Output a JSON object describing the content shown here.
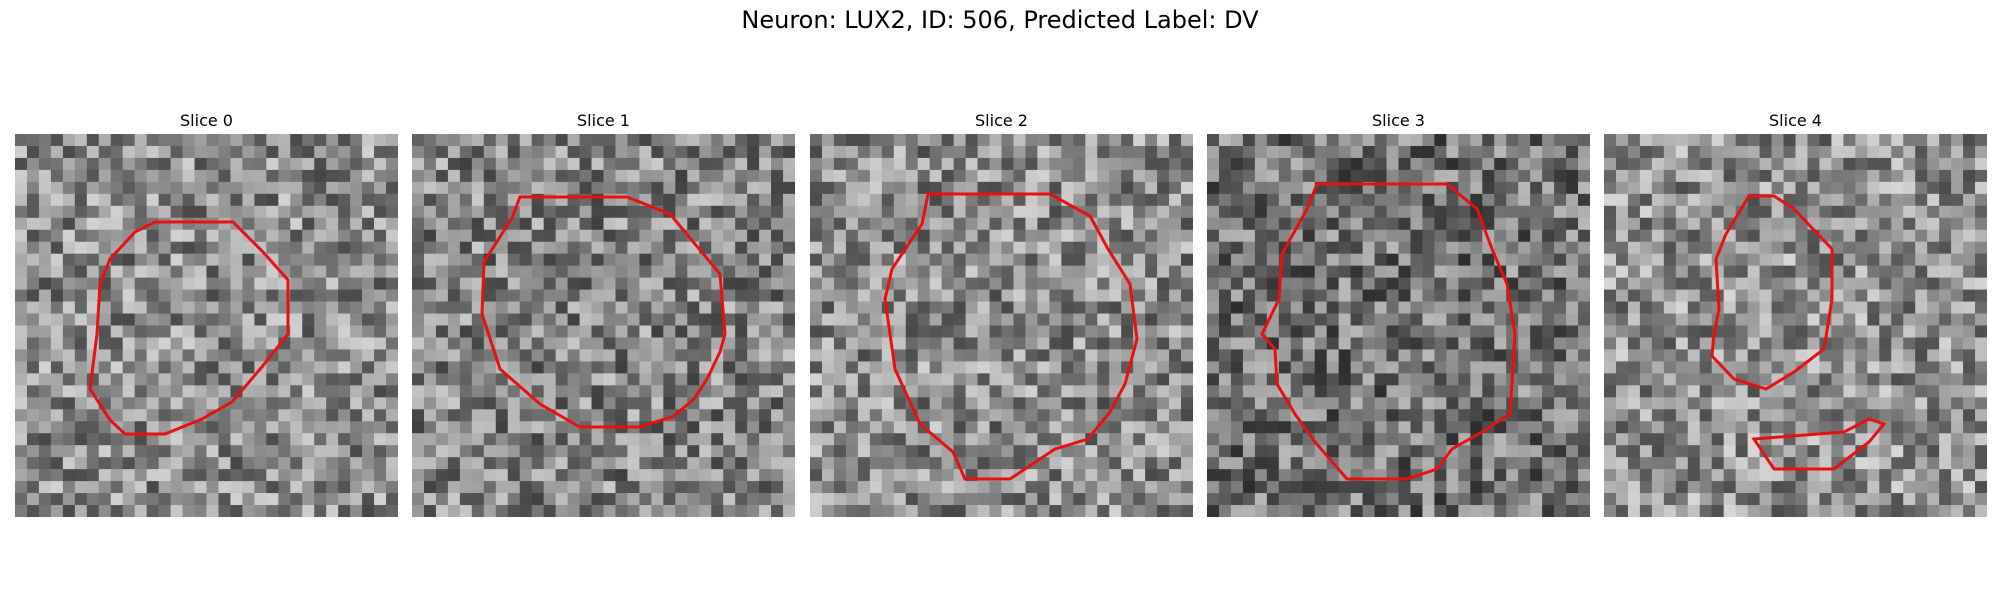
{
  "figure": {
    "title": "Neuron: LUX2, ID: 506, Predicted Label: DV",
    "contour_color": "#e81010",
    "panels": [
      {
        "label": "Slice 0",
        "tone": 0.55,
        "seed": 11
      },
      {
        "label": "Slice 1",
        "tone": 0.52,
        "seed": 23
      },
      {
        "label": "Slice 2",
        "tone": 0.55,
        "seed": 37
      },
      {
        "label": "Slice 3",
        "tone": 0.45,
        "seed": 41
      },
      {
        "label": "Slice 4",
        "tone": 0.57,
        "seed": 59
      }
    ]
  }
}
